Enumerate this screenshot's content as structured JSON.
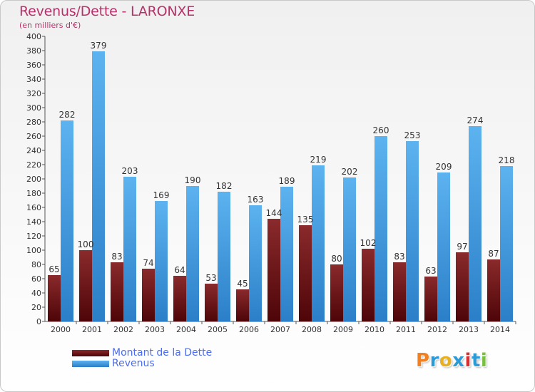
{
  "chart_data": {
    "type": "bar",
    "title": "Revenus/Dette - LARONXE",
    "subtitle": "(en milliers d'€)",
    "categories": [
      "2000",
      "2001",
      "2002",
      "2003",
      "2004",
      "2005",
      "2006",
      "2007",
      "2008",
      "2009",
      "2010",
      "2011",
      "2012",
      "2013",
      "2014"
    ],
    "series": [
      {
        "name": "Montant de la Dette",
        "color": "#7a1416",
        "values": [
          65,
          100,
          83,
          74,
          64,
          53,
          45,
          144,
          135,
          80,
          102,
          83,
          63,
          97,
          87
        ]
      },
      {
        "name": "Revenus",
        "color": "#4aa3e8",
        "values": [
          282,
          379,
          203,
          169,
          190,
          182,
          163,
          189,
          219,
          202,
          260,
          253,
          209,
          274,
          218
        ]
      }
    ],
    "ylim": [
      0,
      400
    ],
    "yticks": [
      0,
      20,
      40,
      60,
      80,
      100,
      120,
      140,
      160,
      180,
      200,
      220,
      240,
      260,
      280,
      300,
      320,
      340,
      360,
      380,
      400
    ],
    "grid": false,
    "legend": "bottom-left"
  },
  "logo": {
    "text": "Proxiti",
    "colors": [
      "#f08020",
      "#2d9ad8",
      "#e8b020",
      "#2d9ad8",
      "#d83030",
      "#2d9ad8",
      "#7ac040"
    ]
  }
}
